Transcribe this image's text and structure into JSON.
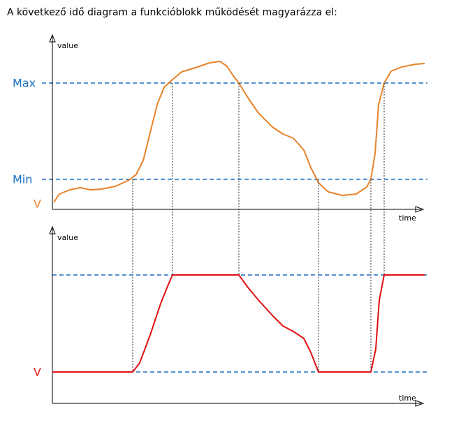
{
  "header": {
    "title": "A következő idő diagram a funkcióblokk működését magyarázza el:"
  },
  "top_diagram": {
    "y_axis_label": "value",
    "x_axis_label": "time",
    "max_label": "Max",
    "min_label": "Min",
    "signal_label": "V"
  },
  "bottom_diagram": {
    "y_axis_label": "value",
    "x_axis_label": "time",
    "signal_label": "V"
  }
}
